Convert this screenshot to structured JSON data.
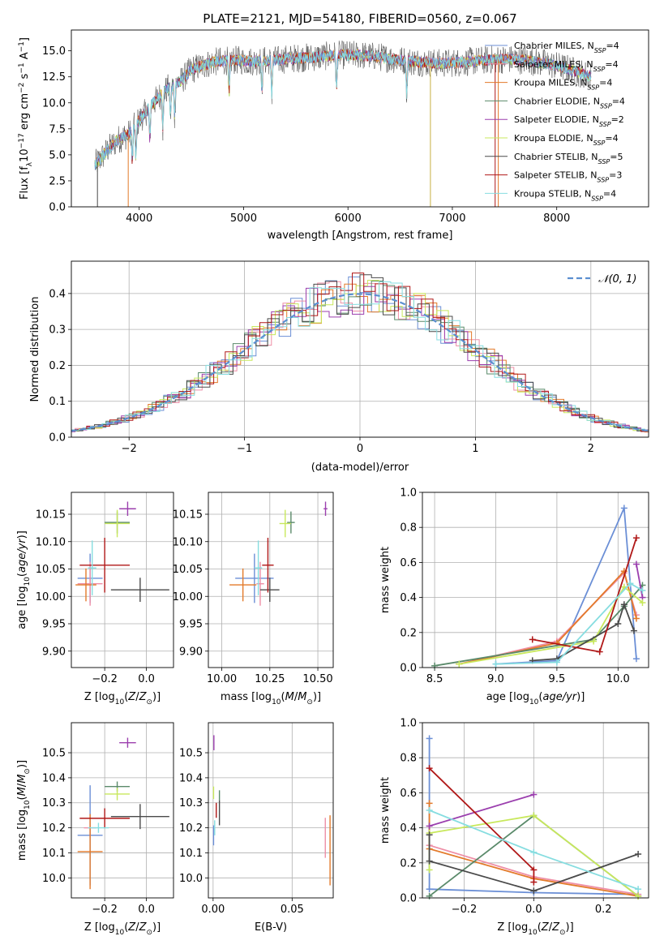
{
  "chart_data": [
    {
      "id": "spectrum",
      "type": "line",
      "title": "PLATE=2121, MJD=54180, FIBERID=0560, z=0.067",
      "xlabel": "wavelength [Angstrom, rest frame]",
      "ylabel": "Flux [f_λ 10^-17 erg cm^-2 s^-1 A^-1]",
      "xlim": [
        3350,
        8880
      ],
      "ylim": [
        0,
        17
      ],
      "xticks": [
        4000,
        5000,
        6000,
        7000,
        8000
      ],
      "yticks": [
        0.0,
        2.5,
        5.0,
        7.5,
        10.0,
        12.5,
        15.0
      ],
      "grid": false,
      "legend_position": "upper-right",
      "continuum": {
        "x": [
          3570,
          3620,
          3700,
          3800,
          3900,
          4000,
          4100,
          4200,
          4300,
          4400,
          4500,
          4700,
          4900,
          5100,
          5300,
          5500,
          5700,
          5900,
          6100,
          6300,
          6500,
          6700,
          6900,
          7100,
          7300,
          7500,
          7700,
          7900,
          8100,
          8300
        ],
        "y": [
          4.0,
          4.5,
          5.5,
          6.5,
          7.0,
          8.3,
          9.6,
          10.7,
          11.6,
          12.1,
          13.2,
          13.9,
          14.1,
          14.0,
          14.1,
          14.3,
          14.4,
          14.6,
          14.6,
          14.4,
          14.1,
          13.9,
          13.8,
          13.9,
          14.1,
          14.2,
          14.1,
          13.8,
          13.3,
          12.6
        ]
      },
      "series": [
        {
          "name": "Chabrier MILES, N_SSP=4",
          "color": "#6b8fd6"
        },
        {
          "name": "Salpeter MILES, N_SSP=4",
          "color": "#ee8ea6"
        },
        {
          "name": "Kroupa MILES, N_SSP=4",
          "color": "#e37a2a"
        },
        {
          "name": "Chabrier ELODIE, N_SSP=4",
          "color": "#5a8a6a"
        },
        {
          "name": "Salpeter ELODIE, N_SSP=2",
          "color": "#9b3fae"
        },
        {
          "name": "Kroupa ELODIE, N_SSP=4",
          "color": "#c8e85c"
        },
        {
          "name": "Chabrier STELIB, N_SSP=5",
          "color": "#4a4a4a"
        },
        {
          "name": "Salpeter STELIB, N_SSP=3",
          "color": "#b01818"
        },
        {
          "name": "Kroupa STELIB, N_SSP=4",
          "color": "#86dde0"
        }
      ]
    },
    {
      "id": "residuals",
      "type": "line",
      "xlabel": "(data-model)/error",
      "ylabel": "Normed distribution",
      "xlim": [
        -2.5,
        2.5
      ],
      "ylim": [
        0,
        0.49
      ],
      "xticks": [
        -2,
        -1,
        0,
        1,
        2
      ],
      "yticks": [
        0.0,
        0.1,
        0.2,
        0.3,
        0.4
      ],
      "grid": true,
      "legend_position": "upper-right",
      "legend": "𝒩(0, 1)",
      "reference": {
        "type": "normal",
        "mean": 0,
        "sigma": 1
      }
    },
    {
      "id": "age-vs-Z",
      "type": "scatter",
      "xlabel": "Z [log10(Z/Z_⊙)]",
      "ylabel": "age  [log10(age/yr)]",
      "xlim": [
        -0.36,
        0.13
      ],
      "ylim": [
        9.87,
        10.19
      ],
      "xticks": [
        -0.2,
        0.0
      ],
      "yticks": [
        9.9,
        9.95,
        10.0,
        10.05,
        10.1,
        10.15
      ],
      "grid": true,
      "points": [
        {
          "x": -0.27,
          "y": 10.033,
          "xerr": 0.06,
          "yerr": 0.045
        },
        {
          "x": -0.27,
          "y": 10.023,
          "xerr": 0.06,
          "yerr": 0.04
        },
        {
          "x": -0.29,
          "y": 10.021,
          "xerr": 0.05,
          "yerr": 0.03
        },
        {
          "x": -0.14,
          "y": 10.135,
          "xerr": 0.06,
          "yerr": 0.02
        },
        {
          "x": -0.09,
          "y": 10.16,
          "xerr": 0.04,
          "yerr": 0.013
        },
        {
          "x": -0.14,
          "y": 10.133,
          "xerr": 0.06,
          "yerr": 0.025
        },
        {
          "x": -0.03,
          "y": 10.012,
          "xerr": 0.14,
          "yerr": 0.022
        },
        {
          "x": -0.2,
          "y": 10.057,
          "xerr": 0.12,
          "yerr": 0.05
        },
        {
          "x": -0.26,
          "y": 10.052,
          "xerr": 0.02,
          "yerr": 0.05
        }
      ]
    },
    {
      "id": "age-vs-mass",
      "type": "scatter",
      "xlabel": "mass [log10(M/M_⊙)]",
      "ylabel": "",
      "xlim": [
        9.93,
        10.58
      ],
      "ylim": [
        9.87,
        10.19
      ],
      "xticks": [
        10.0,
        10.25,
        10.5
      ],
      "yticks": [
        9.9,
        9.95,
        10.0,
        10.05,
        10.1,
        10.15
      ],
      "grid": true,
      "points": [
        {
          "x": 10.17,
          "y": 10.033,
          "xerr": 0.1,
          "yerr": 0.045
        },
        {
          "x": 10.2,
          "y": 10.023,
          "xerr": 0.02,
          "yerr": 0.04
        },
        {
          "x": 10.11,
          "y": 10.021,
          "xerr": 0.07,
          "yerr": 0.03
        },
        {
          "x": 10.36,
          "y": 10.135,
          "xerr": 0.02,
          "yerr": 0.02
        },
        {
          "x": 10.54,
          "y": 10.16,
          "xerr": 0.01,
          "yerr": 0.013
        },
        {
          "x": 10.33,
          "y": 10.133,
          "xerr": 0.03,
          "yerr": 0.025
        },
        {
          "x": 10.25,
          "y": 10.012,
          "xerr": 0.05,
          "yerr": 0.022
        },
        {
          "x": 10.24,
          "y": 10.057,
          "xerr": 0.03,
          "yerr": 0.05
        },
        {
          "x": 10.19,
          "y": 10.052,
          "xerr": 0.02,
          "yerr": 0.05
        }
      ]
    },
    {
      "id": "weight-vs-age",
      "type": "line",
      "xlabel": "age  [log10(age/yr)]",
      "ylabel": "mass weight",
      "xlim": [
        8.4,
        10.25
      ],
      "ylim": [
        0,
        1
      ],
      "xticks": [
        8.5,
        9.0,
        9.5,
        10.0
      ],
      "yticks": [
        0.0,
        0.2,
        0.4,
        0.6,
        0.8,
        1.0
      ],
      "grid": true,
      "series": [
        {
          "x": [
            9.0,
            9.5,
            10.05,
            10.15
          ],
          "y": [
            0.02,
            0.04,
            0.91,
            0.05
          ]
        },
        {
          "x": [
            8.7,
            9.5,
            10.05,
            10.15
          ],
          "y": [
            0.02,
            0.15,
            0.54,
            0.3
          ]
        },
        {
          "x": [
            8.7,
            9.5,
            10.05,
            10.15
          ],
          "y": [
            0.02,
            0.14,
            0.55,
            0.28
          ]
        },
        {
          "x": [
            8.5,
            9.8,
            10.05,
            10.2
          ],
          "y": [
            0.01,
            0.16,
            0.35,
            0.47
          ]
        },
        {
          "x": [
            10.15,
            10.2
          ],
          "y": [
            0.59,
            0.4
          ]
        },
        {
          "x": [
            8.7,
            9.8,
            10.05,
            10.2
          ],
          "y": [
            0.02,
            0.15,
            0.46,
            0.37
          ]
        },
        {
          "x": [
            9.3,
            9.5,
            10.0,
            10.05,
            10.13
          ],
          "y": [
            0.04,
            0.05,
            0.25,
            0.36,
            0.21
          ]
        },
        {
          "x": [
            9.3,
            9.85,
            10.15
          ],
          "y": [
            0.16,
            0.09,
            0.74
          ]
        },
        {
          "x": [
            9.0,
            9.5,
            10.1,
            10.2
          ],
          "y": [
            0.02,
            0.03,
            0.48,
            0.44
          ]
        }
      ]
    },
    {
      "id": "mass-vs-Z",
      "type": "scatter",
      "xlabel": "Z [log10(Z/Z_⊙)]",
      "ylabel": "mass [log10(M/M_⊙)]",
      "xlim": [
        -0.36,
        0.13
      ],
      "ylim": [
        9.92,
        10.62
      ],
      "xticks": [
        -0.2,
        0.0
      ],
      "yticks": [
        10.0,
        10.1,
        10.2,
        10.3,
        10.4,
        10.5
      ],
      "grid": true,
      "points": [
        {
          "x": -0.27,
          "y": 10.17,
          "xerr": 0.06,
          "yerr": 0.2
        },
        {
          "x": -0.27,
          "y": 10.2,
          "xerr": 0.03,
          "yerr": 0.04
        },
        {
          "x": -0.27,
          "y": 10.105,
          "xerr": 0.06,
          "yerr": 0.15
        },
        {
          "x": -0.14,
          "y": 10.365,
          "xerr": 0.06,
          "yerr": 0.02
        },
        {
          "x": -0.09,
          "y": 10.54,
          "xerr": 0.04,
          "yerr": 0.02
        },
        {
          "x": -0.14,
          "y": 10.335,
          "xerr": 0.06,
          "yerr": 0.025
        },
        {
          "x": -0.03,
          "y": 10.245,
          "xerr": 0.14,
          "yerr": 0.05
        },
        {
          "x": -0.2,
          "y": 10.238,
          "xerr": 0.12,
          "yerr": 0.04
        },
        {
          "x": -0.23,
          "y": 10.2,
          "xerr": 0.05,
          "yerr": 0.02
        }
      ]
    },
    {
      "id": "mass-vs-EBV",
      "type": "scatter",
      "xlabel": "E(B-V)",
      "ylabel": "",
      "xlim": [
        -0.003,
        0.076
      ],
      "ylim": [
        9.92,
        10.62
      ],
      "xticks": [
        0.0,
        0.05
      ],
      "yticks": [
        10.0,
        10.1,
        10.2,
        10.3,
        10.4,
        10.5
      ],
      "grid": true,
      "points": [
        {
          "x": 0.0003,
          "y": 10.17,
          "yerr": 0.04
        },
        {
          "x": 0.071,
          "y": 10.16,
          "yerr": 0.08
        },
        {
          "x": 0.074,
          "y": 10.11,
          "yerr": 0.14
        },
        {
          "x": 0.004,
          "y": 10.33,
          "yerr": 0.02
        },
        {
          "x": 0.0005,
          "y": 10.54,
          "yerr": 0.03
        },
        {
          "x": 0.0003,
          "y": 10.34,
          "yerr": 0.025
        },
        {
          "x": 0.004,
          "y": 10.26,
          "yerr": 0.05
        },
        {
          "x": 0.002,
          "y": 10.27,
          "yerr": 0.03
        },
        {
          "x": 0.001,
          "y": 10.2,
          "yerr": 0.03
        }
      ]
    },
    {
      "id": "weight-vs-Z",
      "type": "line",
      "xlabel": "Z [log10(Z/Z_⊙)]",
      "ylabel": "mass weight",
      "xlim": [
        -0.32,
        0.33
      ],
      "ylim": [
        0,
        1
      ],
      "xticks": [
        -0.2,
        0.0,
        0.2
      ],
      "yticks": [
        0.0,
        0.2,
        0.4,
        0.6,
        0.8,
        1.0
      ],
      "grid": true,
      "series": [
        {
          "x": [
            -0.3,
            -0.3,
            0.0,
            0.3
          ],
          "y": [
            0.91,
            0.05,
            0.03,
            0.02
          ]
        },
        {
          "x": [
            -0.3,
            0.0,
            0.3
          ],
          "y": [
            0.3,
            0.12,
            0.02
          ]
        },
        {
          "x": [
            -0.3,
            -0.3,
            0.0,
            0.3
          ],
          "y": [
            0.54,
            0.28,
            0.11,
            0.01
          ]
        },
        {
          "x": [
            -0.3,
            0.0,
            0.3
          ],
          "y": [
            0.01,
            0.47,
            0.01
          ]
        },
        {
          "x": [
            -0.3,
            0.0
          ],
          "y": [
            0.41,
            0.59
          ]
        },
        {
          "x": [
            -0.3,
            -0.3,
            0.0,
            0.3
          ],
          "y": [
            0.16,
            0.37,
            0.47,
            0.01
          ]
        },
        {
          "x": [
            -0.3,
            -0.3,
            0.0,
            0.3
          ],
          "y": [
            0.36,
            0.21,
            0.04,
            0.25
          ]
        },
        {
          "x": [
            -0.3,
            0.0,
            0.0
          ],
          "y": [
            0.74,
            0.16,
            0.09
          ]
        },
        {
          "x": [
            -0.3,
            0.0,
            0.3
          ],
          "y": [
            0.5,
            0.26,
            0.05
          ]
        }
      ]
    }
  ]
}
